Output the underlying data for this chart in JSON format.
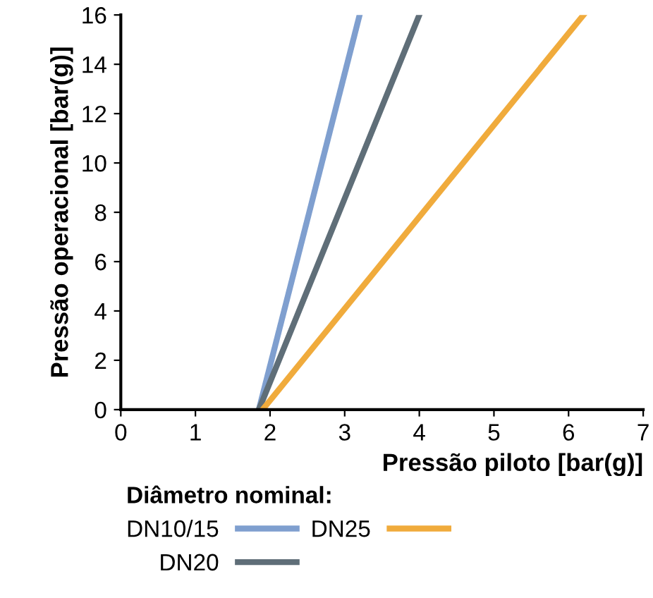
{
  "chart_data": {
    "type": "line",
    "xlabel": "Pressão piloto [bar(g)]",
    "ylabel": "Pressão operacional [bar(g)]",
    "legend_title": "Diâmetro nominal:",
    "legend": "bottom",
    "grid": false,
    "marker": "none",
    "line_style": "solid",
    "xlim": [
      0,
      7
    ],
    "ylim": [
      0,
      16
    ],
    "xticks": [
      0,
      1,
      2,
      3,
      4,
      5,
      6,
      7
    ],
    "yticks": [
      0,
      2,
      4,
      6,
      8,
      10,
      12,
      14,
      16
    ],
    "series": [
      {
        "name": "DN10/15",
        "color": "#7f9fcf",
        "x": [
          1.85,
          3.2
        ],
        "values": [
          0,
          16
        ]
      },
      {
        "name": "DN20",
        "color": "#5f6e78",
        "x": [
          1.85,
          4.0
        ],
        "values": [
          0,
          16
        ]
      },
      {
        "name": "DN25",
        "color": "#f0ab3c",
        "x": [
          1.9,
          6.2
        ],
        "values": [
          0,
          16
        ]
      }
    ]
  }
}
